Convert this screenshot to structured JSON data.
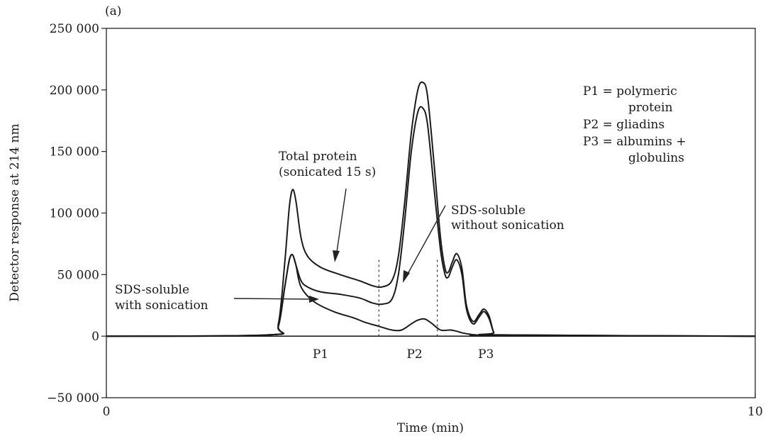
{
  "panel_label": "(a)",
  "chart_data": {
    "type": "line",
    "xlabel": "Time (min)",
    "ylabel": "Detector response at 214 nm",
    "xlim": [
      0,
      10
    ],
    "ylim": [
      -50000,
      250000
    ],
    "x_ticks": [
      {
        "value": 0,
        "label": "0"
      },
      {
        "value": 10,
        "label": "10"
      }
    ],
    "y_ticks": [
      {
        "value": 250000,
        "label": "250 000"
      },
      {
        "value": 200000,
        "label": "200 000"
      },
      {
        "value": 150000,
        "label": "150 000"
      },
      {
        "value": 100000,
        "label": "100 000"
      },
      {
        "value": 50000,
        "label": "50 000"
      },
      {
        "value": 0,
        "label": "0"
      },
      {
        "value": -50000,
        "label": "−50 000"
      }
    ],
    "grid": false,
    "series": [
      {
        "name": "Total protein (sonicated 15 s)",
        "x": [
          0,
          2.5,
          2.65,
          2.75,
          2.82,
          2.87,
          2.92,
          3.0,
          3.1,
          3.3,
          3.6,
          3.9,
          4.1,
          4.25,
          4.4,
          4.5,
          4.6,
          4.7,
          4.8,
          4.88,
          4.95,
          5.05,
          5.15,
          5.22,
          5.27,
          5.33,
          5.4,
          5.48,
          5.55,
          5.65,
          5.75,
          5.82,
          5.9,
          5.97,
          6.05,
          10
        ],
        "y": [
          0,
          1000,
          10000,
          60000,
          105000,
          119000,
          110000,
          80000,
          65000,
          56000,
          50000,
          45000,
          41000,
          40000,
          45000,
          65000,
          110000,
          165000,
          200000,
          206000,
          195000,
          140000,
          80000,
          55000,
          52000,
          60000,
          67000,
          55000,
          25000,
          12000,
          18000,
          22000,
          16000,
          3000,
          1000,
          0
        ]
      },
      {
        "name": "SDS-soluble without sonication",
        "x": [
          0,
          2.5,
          2.65,
          2.75,
          2.82,
          2.87,
          2.92,
          3.0,
          3.1,
          3.3,
          3.6,
          3.9,
          4.1,
          4.25,
          4.4,
          4.5,
          4.6,
          4.7,
          4.8,
          4.88,
          4.95,
          5.05,
          5.15,
          5.22,
          5.27,
          5.33,
          5.4,
          5.48,
          5.55,
          5.65,
          5.75,
          5.82,
          5.9,
          5.97,
          6.05,
          10
        ],
        "y": [
          0,
          1000,
          8000,
          40000,
          62000,
          66000,
          58000,
          45000,
          40000,
          36000,
          34000,
          31000,
          27000,
          26000,
          30000,
          50000,
          95000,
          150000,
          182000,
          185000,
          172000,
          120000,
          70000,
          50000,
          48000,
          56000,
          62000,
          50000,
          22000,
          10000,
          16000,
          20000,
          14000,
          3000,
          1000,
          0
        ]
      },
      {
        "name": "SDS-soluble with sonication",
        "x": [
          0,
          2.5,
          2.65,
          2.75,
          2.82,
          2.87,
          2.92,
          3.0,
          3.2,
          3.5,
          3.8,
          4.0,
          4.2,
          4.4,
          4.55,
          4.7,
          4.8,
          4.9,
          5.0,
          5.15,
          5.3,
          5.4,
          5.5,
          5.7,
          6.0,
          10
        ],
        "y": [
          0,
          1000,
          8000,
          40000,
          62000,
          66000,
          58000,
          40000,
          28000,
          20000,
          15000,
          11000,
          8000,
          5000,
          5000,
          10000,
          13000,
          14000,
          11000,
          5000,
          5000,
          4000,
          2500,
          1000,
          500,
          0
        ]
      }
    ],
    "peak_labels": [
      {
        "text": "P1",
        "x": 3.3
      },
      {
        "text": "P2",
        "x": 4.75
      },
      {
        "text": "P3",
        "x": 5.85
      }
    ],
    "dividers_x": [
      4.2,
      5.1
    ],
    "annotations": [
      {
        "lines": [
          "Total protein",
          "(sonicated 15 s)"
        ]
      },
      {
        "lines": [
          "SDS-soluble",
          "without sonication"
        ]
      },
      {
        "lines": [
          "SDS-soluble",
          "with sonication"
        ]
      }
    ],
    "legend_text": [
      "P1 = polymeric",
      "protein",
      "P2 = gliadins",
      "P3 = albumins +",
      "globulins"
    ]
  }
}
